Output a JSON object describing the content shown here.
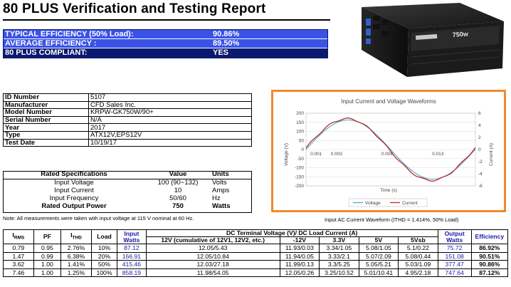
{
  "report": {
    "title": "80 PLUS Verification and Testing Report"
  },
  "summary": [
    {
      "label": "TYPICAL EFFICIENCY (50% Load):",
      "value": "90.86%"
    },
    {
      "label": "AVERAGE EFFICIENCY :",
      "value": "89.50%"
    },
    {
      "label": "80 PLUS COMPLIANT:",
      "value": "YES"
    }
  ],
  "photo": {
    "brand_text": "KRPW-GK750W/90+",
    "badge": "750w"
  },
  "info": [
    {
      "label": "ID Number",
      "value": "5107"
    },
    {
      "label": "Manufacturer",
      "value": "CFD Sales Inc."
    },
    {
      "label": "Model Number",
      "value": "KRPW-GK750W/90+"
    },
    {
      "label": "Serial Number",
      "value": "N/A"
    },
    {
      "label": "Year",
      "value": "2017"
    },
    {
      "label": "Type",
      "value": "ATX12V,EPS12V"
    },
    {
      "label": "Test Date",
      "value": "10/19/17"
    }
  ],
  "specs": {
    "headers": [
      "Rated Specifications",
      "Value",
      "Units"
    ],
    "rows": [
      {
        "name": "Input Voltage",
        "value": "100 (90~132)",
        "unit": "Volts"
      },
      {
        "name": "Input Current",
        "value": "10",
        "unit": "Amps"
      },
      {
        "name": "Input Frequency",
        "value": "50/60",
        "unit": "Hz"
      },
      {
        "name": "Rated Output Power",
        "value": "750",
        "unit": "Watts"
      }
    ]
  },
  "note": "Note: All measurements were taken with input voltage at 115 V nominal at 60 Hz.",
  "chart_caption": "Input AC Current Waveform (ITHD = 1.414%, 50% Load)",
  "chart_data": {
    "type": "line",
    "title": "Input Current and Voltage Waveforms",
    "xlabel": "Time (s)",
    "ylabel": "Voltage (V)",
    "y2label": "Current (A)",
    "xlim": [
      0,
      0.0167
    ],
    "ylim": [
      -200,
      200
    ],
    "y2lim": [
      -6,
      6
    ],
    "x_ticks": [
      "0.001",
      "0.003",
      "0.008",
      "0.013"
    ],
    "x_tick_values": [
      0.001,
      0.003,
      0.008,
      0.013
    ],
    "y_ticks": [
      200,
      150,
      100,
      50,
      0,
      -50,
      -100,
      -150,
      -200
    ],
    "y2_ticks": [
      6,
      4,
      2,
      0,
      -2,
      -4,
      -6
    ],
    "grid": true,
    "legend": "bottom",
    "series": [
      {
        "name": "Voltage",
        "axis": "left",
        "color": "#4bacc6",
        "amplitude": 163,
        "frequency": 60
      },
      {
        "name": "Current",
        "axis": "right",
        "color": "#c0282d",
        "amplitude": 5.1,
        "frequency": 60
      }
    ]
  },
  "data": {
    "header_top": {
      "irms": "I",
      "irms_sub": "RMS",
      "pf": "PF",
      "ithd": "I",
      "ithd_sub": "THD",
      "load": "Load",
      "input_watts": "Input Watts",
      "dc_group": "DC Terminal Voltage (V)/ DC Load Current (A)",
      "output_watts": "Output Watts",
      "efficiency": "Efficiency"
    },
    "header_sub": [
      "12V (cumulative of 12V1, 12V2, etc.)",
      "-12V",
      "3.3V",
      "5V",
      "5Vsb"
    ],
    "rows": [
      {
        "irms": "0.79",
        "pf": "0.95",
        "ithd": "2.76%",
        "load": "10%",
        "input": "87.12",
        "v12": "12.05/5.43",
        "vm12": "11.93/0.03",
        "v33": "3.34/1.05",
        "v5": "5.08/1.05",
        "v5sb": "5.1/0.22",
        "output": "75.72",
        "eff": "86.92%"
      },
      {
        "irms": "1.47",
        "pf": "0.99",
        "ithd": "6.38%",
        "load": "20%",
        "input": "166.91",
        "v12": "12.05/10.84",
        "vm12": "11.94/0.05",
        "v33": "3.33/2.1",
        "v5": "5.07/2.09",
        "v5sb": "5.08/0.44",
        "output": "151.08",
        "eff": "90.51%"
      },
      {
        "irms": "3.62",
        "pf": "1.00",
        "ithd": "1.41%",
        "load": "50%",
        "input": "415.46",
        "v12": "12.03/27.18",
        "vm12": "11.99/0.13",
        "v33": "3.3/5.25",
        "v5": "5.05/5.21",
        "v5sb": "5.03/1.09",
        "output": "377.47",
        "eff": "90.86%"
      },
      {
        "irms": "7.46",
        "pf": "1.00",
        "ithd": "1.25%",
        "load": "100%",
        "input": "858.19",
        "v12": "11.98/54.05",
        "vm12": "12.05/0.26",
        "v33": "3.25/10.52",
        "v5": "5.01/10.41",
        "v5sb": "4.95/2.18",
        "output": "747.64",
        "eff": "87.12%"
      }
    ]
  }
}
